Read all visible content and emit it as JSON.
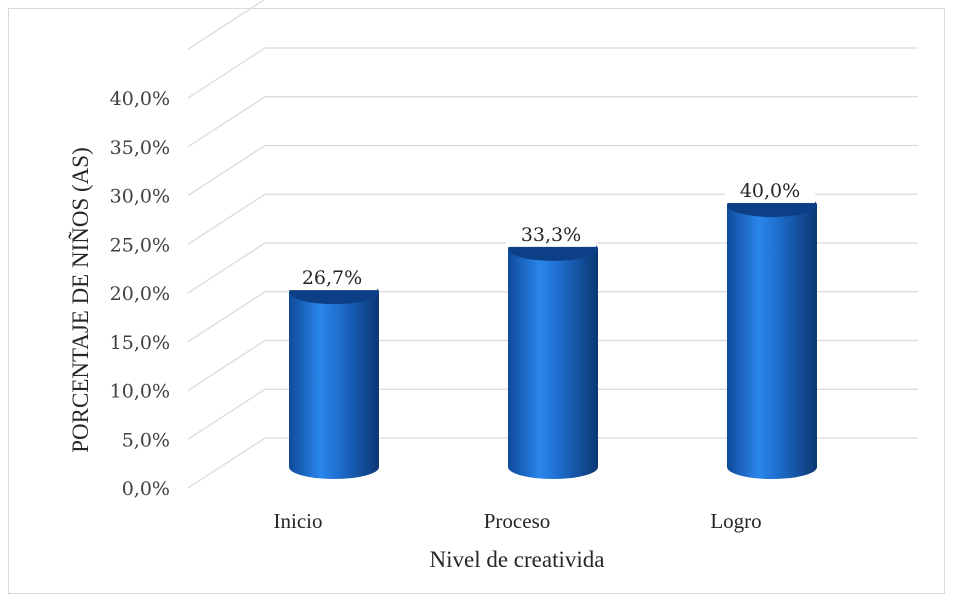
{
  "chart_data": {
    "type": "bar",
    "categories": [
      "Inicio",
      "Proceso",
      "Logro"
    ],
    "values": [
      26.7,
      33.3,
      40.0
    ],
    "data_labels": [
      "26,7%",
      "33,3%",
      "40,0%"
    ],
    "title": "",
    "xlabel": "Nivel de creativida",
    "ylabel": "PORCENTAJE DE NIÑOS (AS)",
    "ylim": [
      0,
      45
    ],
    "yticks": [
      0,
      5,
      10,
      15,
      20,
      25,
      30,
      35,
      40
    ],
    "ytick_labels": [
      "0,0%",
      "5,0%",
      "10,0%",
      "15,0%",
      "20,0%",
      "25,0%",
      "30,0%",
      "35,0%",
      "40,0%"
    ],
    "grid": true,
    "style": "3d-cylinder",
    "colors": {
      "bar": "#1f6fd1",
      "bar_dark": "#0d3f86",
      "grid": "#d9d9d9"
    }
  }
}
